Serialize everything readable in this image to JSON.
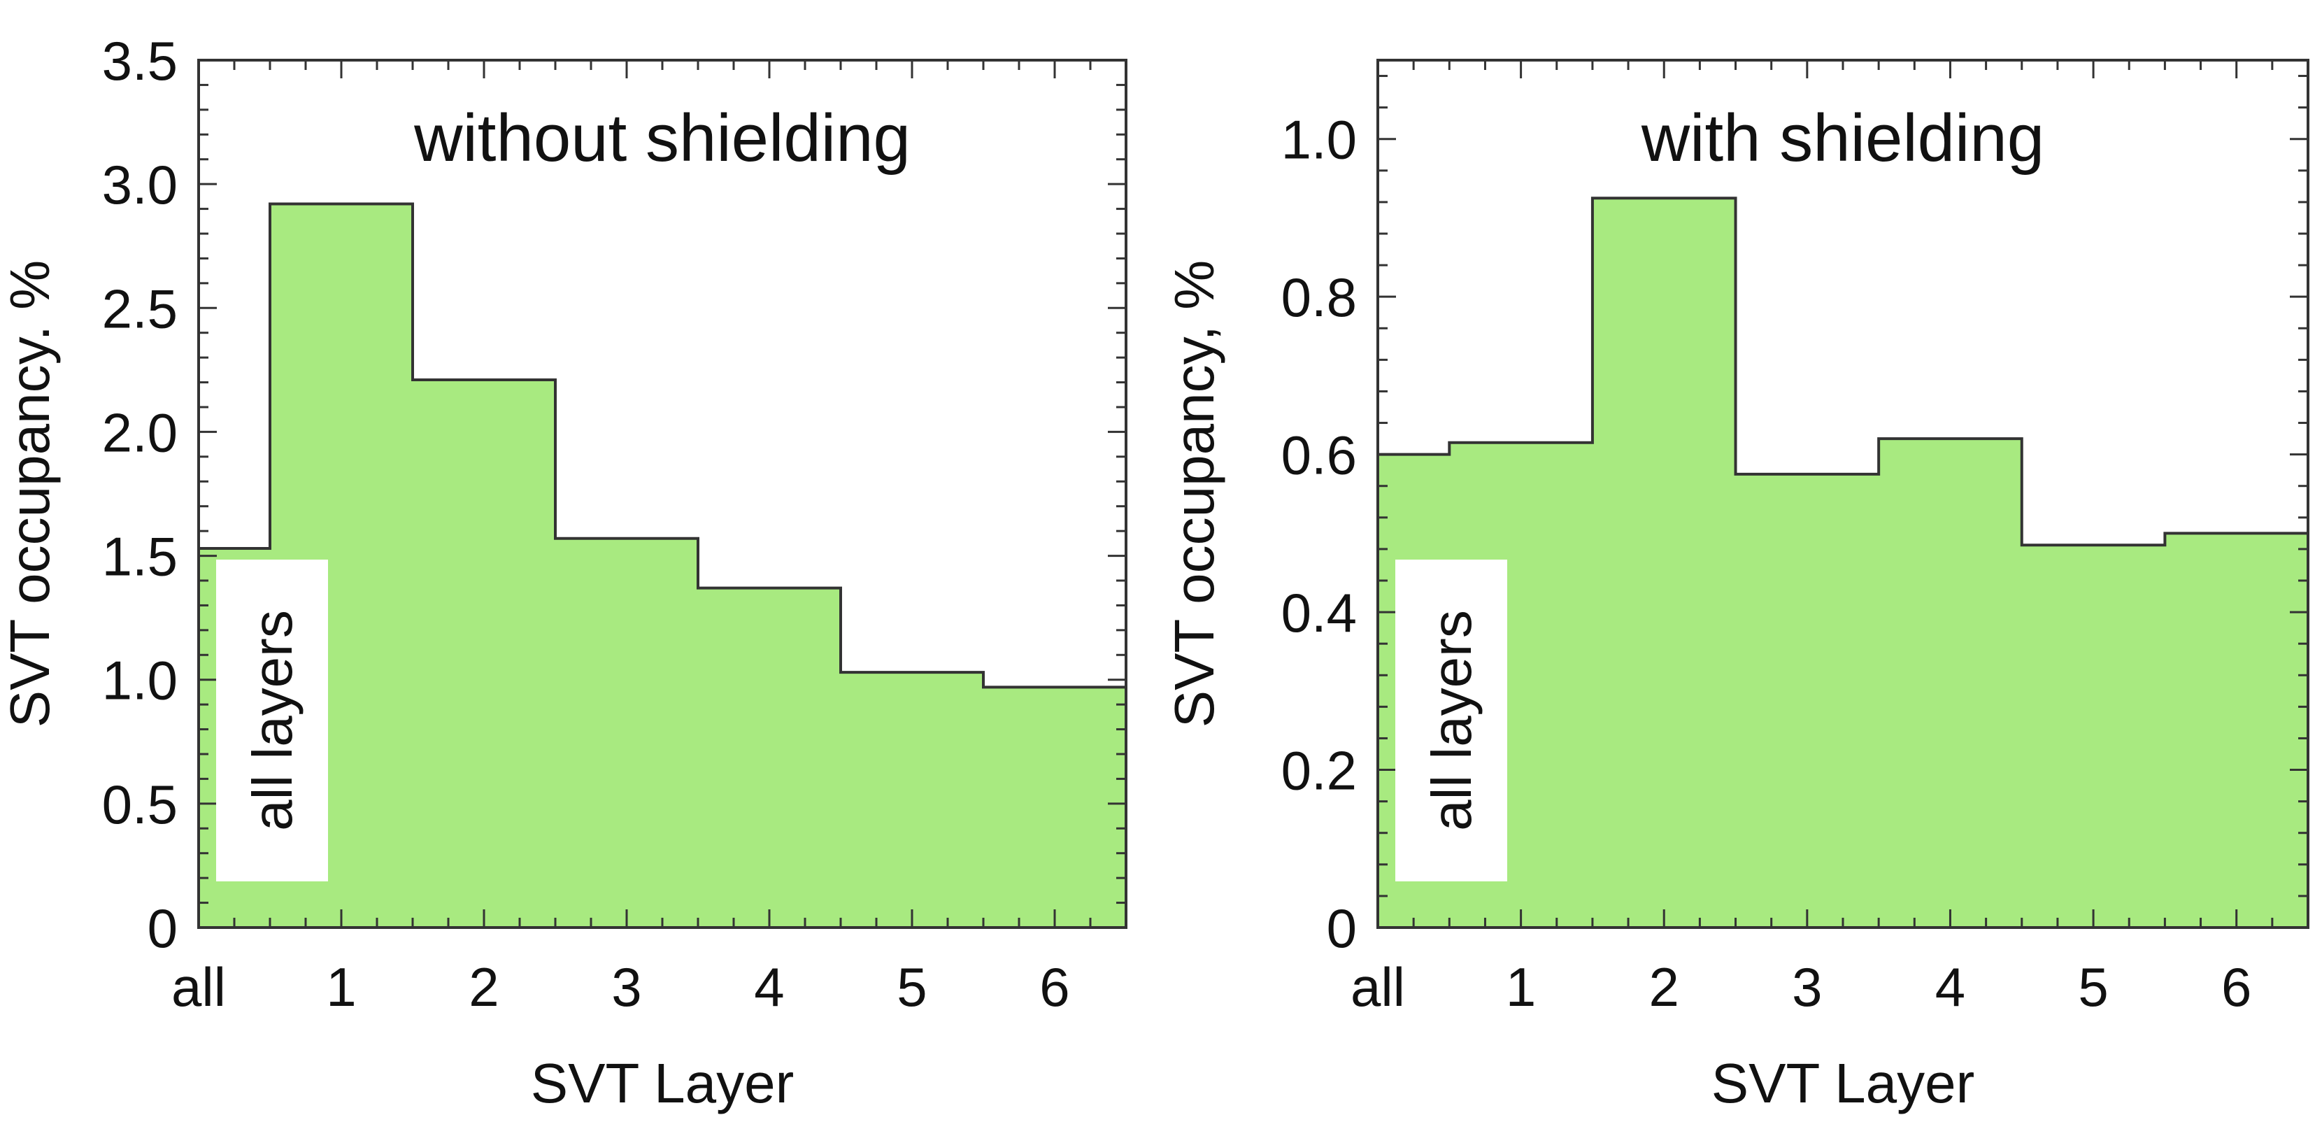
{
  "chart_data": [
    {
      "type": "bar",
      "style": "step-histogram",
      "title": "without shielding",
      "xlabel": "SVT Layer",
      "ylabel": "SVT occupancy. %",
      "categories": [
        "all",
        "1",
        "2",
        "3",
        "4",
        "5",
        "6"
      ],
      "values": [
        1.53,
        2.92,
        2.21,
        1.57,
        1.37,
        1.03,
        0.97
      ],
      "ylim": [
        0,
        3.5
      ],
      "yticks": [
        "0",
        "0.5",
        "1.0",
        "1.5",
        "2.0",
        "2.5",
        "3.0",
        "3.5"
      ],
      "ytick_values": [
        0,
        0.5,
        1.0,
        1.5,
        2.0,
        2.5,
        3.0,
        3.5
      ],
      "annotation": "all layers",
      "grid": false,
      "fill_color": "#a8ea80",
      "line_color": "#333333"
    },
    {
      "type": "bar",
      "style": "step-histogram",
      "title": "with shielding",
      "xlabel": "SVT Layer",
      "ylabel": "SVT occupancy, %",
      "categories": [
        "all",
        "1",
        "2",
        "3",
        "4",
        "5",
        "6"
      ],
      "values": [
        0.6,
        0.615,
        0.925,
        0.575,
        0.62,
        0.485,
        0.5
      ],
      "ylim": [
        0,
        1.1
      ],
      "yticks": [
        "0",
        "0.2",
        "0.4",
        "0.6",
        "0.8",
        "1.0"
      ],
      "ytick_values": [
        0,
        0.2,
        0.4,
        0.6,
        0.8,
        1.0
      ],
      "annotation": "all layers",
      "grid": false,
      "fill_color": "#a8ea80",
      "line_color": "#333333"
    }
  ]
}
